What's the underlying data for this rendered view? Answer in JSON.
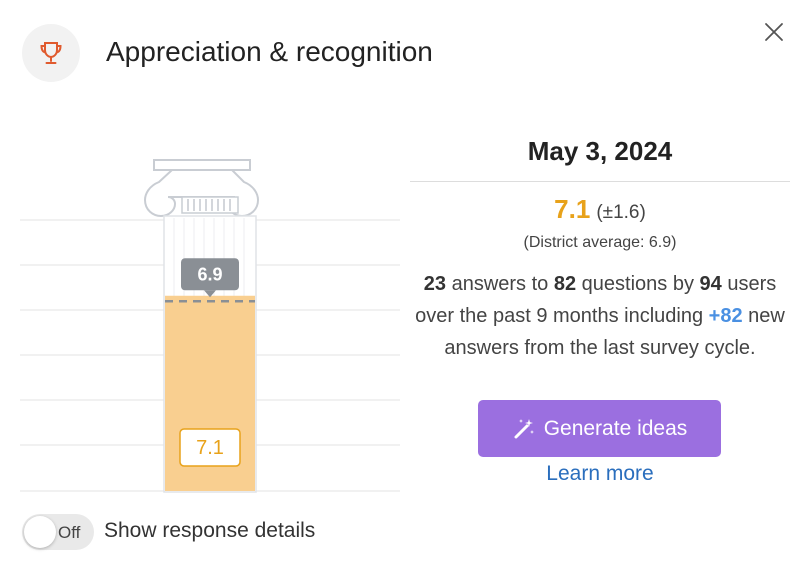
{
  "header": {
    "title": "Appreciation & recognition",
    "icon": "trophy-icon",
    "icon_color": "#e05a2e"
  },
  "chart_data": {
    "type": "bar",
    "values": [
      7.1
    ],
    "reference": 6.9,
    "value_label": "7.1",
    "reference_label": "6.9",
    "ylim": [
      0,
      10
    ],
    "grid": true,
    "colors": {
      "bar": "#f9cf90",
      "value_badge": "#e8a21a",
      "reference_badge": "#8a8f95"
    }
  },
  "summary": {
    "date": "May 3, 2024",
    "score": "7.1",
    "score_range": "(±1.6)",
    "district_average": "(District average: 6.9)",
    "answers": "23",
    "questions": "82",
    "users": "94",
    "text_answers_to": " answers to ",
    "text_questions_by": " questions by ",
    "text_users_over": " users over the past 9 months including ",
    "new_answers": "+82",
    "text_new_answers": " new answers from the last survey cycle."
  },
  "actions": {
    "generate_label": "Generate ideas",
    "generate_icon": "magic-wand-icon",
    "generate_color": "#9b6fe0",
    "learn_more": "Learn more"
  },
  "toggle": {
    "state": "Off",
    "label": "Show response details"
  }
}
